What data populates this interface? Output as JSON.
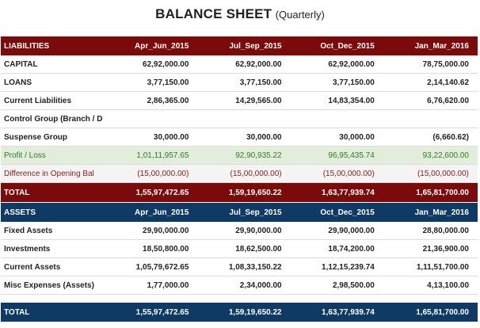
{
  "title": {
    "main": "BALANCE SHEET",
    "sub": "(Quarterly)"
  },
  "periods": [
    "Apr_Jun_2015",
    "Jul_Sep_2015",
    "Oct_Dec_2015",
    "Jan_Mar_2016"
  ],
  "liabilities": {
    "header": "LIABILITIES",
    "rows": [
      {
        "label": "CAPITAL",
        "values": [
          "62,92,000.00",
          "62,92,000.00",
          "62,92,000.00",
          "78,75,000.00"
        ]
      },
      {
        "label": "LOANS",
        "values": [
          "3,77,150.00",
          "3,77,150.00",
          "3,77,150.00",
          "2,14,140.62"
        ]
      },
      {
        "label": "Current Liabilities",
        "values": [
          "2,86,365.00",
          "14,29,565.00",
          "14,83,354.00",
          "6,76,620.00"
        ]
      },
      {
        "label": "Control Group (Branch / D",
        "values": [
          "",
          "",
          "",
          ""
        ]
      },
      {
        "label": "Suspense Group",
        "values": [
          "30,000.00",
          "30,000.00",
          "30,000.00",
          "(6,660.62)"
        ]
      }
    ],
    "profit": {
      "label": "Profit / Loss",
      "values": [
        "1,01,11,957.65",
        "92,90,935.22",
        "96,95,435.74",
        "93,22,600.00"
      ]
    },
    "diff": {
      "label": "Difference in Opening Bal",
      "values": [
        "(15,00,000.00)",
        "(15,00,000.00)",
        "(15,00,000.00)",
        "(15,00,000.00)"
      ]
    },
    "total": {
      "label": "TOTAL",
      "values": [
        "1,55,97,472.65",
        "1,59,19,650.22",
        "1,63,77,939.74",
        "1,65,81,700.00"
      ]
    }
  },
  "assets": {
    "header": "ASSETS",
    "rows": [
      {
        "label": "Fixed Assets",
        "values": [
          "29,90,000.00",
          "29,90,000.00",
          "29,90,000.00",
          "28,80,000.00"
        ]
      },
      {
        "label": "Investments",
        "values": [
          "18,50,800.00",
          "18,62,500.00",
          "18,74,200.00",
          "21,36,900.00"
        ]
      },
      {
        "label": "Current Assets",
        "values": [
          "1,05,79,672.65",
          "1,08,33,150.22",
          "1,12,15,239.74",
          "1,11,51,700.00"
        ]
      },
      {
        "label": "Misc Expenses (Assets)",
        "values": [
          "1,77,000.00",
          "2,34,000.00",
          "2,98,500.00",
          "4,13,100.00"
        ]
      }
    ],
    "total": {
      "label": "TOTAL",
      "values": [
        "1,55,97,472.65",
        "1,59,19,650.22",
        "1,63,77,939.74",
        "1,65,81,700.00"
      ]
    }
  },
  "colors": {
    "liabilities_header": "#7b0a0a",
    "assets_header": "#0e3a63",
    "profit_bg": "#e2eedb",
    "profit_text": "#2e7d1f",
    "diff_text": "#8a1a1a"
  }
}
